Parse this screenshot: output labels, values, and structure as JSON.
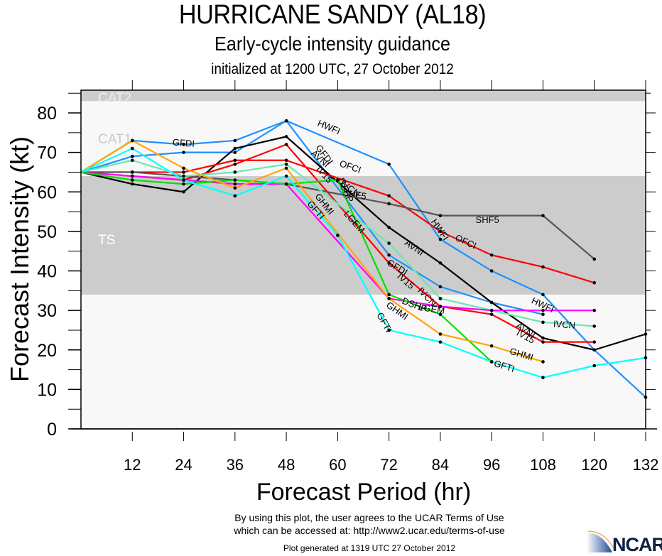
{
  "title": "HURRICANE SANDY (AL18)",
  "subtitle": "Early-cycle intensity guidance",
  "subtitle2": "initialized at 1200 UTC, 27 October 2012",
  "footer": {
    "terms_line1": "By using this plot, the user agrees to the UCAR Terms of Use",
    "terms_line2": "which can be accessed at: http://www2.ucar.edu/terms-of-use",
    "generated": "Plot generated at 1319 UTC   27 October 2012",
    "logo_text": "NCAR"
  },
  "chart_data": {
    "type": "line",
    "title": "HURRICANE SANDY (AL18)",
    "subtitle": "Early-cycle intensity guidance",
    "xlabel": "Forecast Period (hr)",
    "ylabel": "Forecast Intensity (kt)",
    "xlim": [
      0,
      132
    ],
    "ylim": [
      0,
      86
    ],
    "xticks": [
      12,
      24,
      36,
      48,
      60,
      72,
      84,
      96,
      108,
      120,
      132
    ],
    "yticks": [
      0,
      10,
      20,
      30,
      40,
      50,
      60,
      70,
      80
    ],
    "grid": false,
    "legend": "inline labels",
    "bands": [
      {
        "label": "TS",
        "from": 34,
        "to": 64,
        "color": "#cccccc",
        "label_color": "#ffffff"
      },
      {
        "label": "CAT1",
        "from": 64,
        "to": 83,
        "color": "#f8f8f8",
        "label_color": "#c8c8c8"
      },
      {
        "label": "CAT2",
        "from": 83,
        "to": 96,
        "color": "#cccccc",
        "label_color": "#f0f0f0"
      }
    ],
    "series": [
      {
        "name": "HWFI",
        "color": "#1e90ff",
        "x": [
          0,
          12,
          24,
          36,
          48,
          72,
          84,
          96,
          108,
          120,
          132
        ],
        "values": [
          65,
          69,
          70,
          70,
          78,
          67,
          48,
          40,
          34,
          20,
          8
        ],
        "label_at": [
          [
            58,
            76.5
          ],
          [
            84,
            50.5
          ],
          [
            108,
            31.5
          ]
        ]
      },
      {
        "name": "GFDI",
        "color": "#1e90ff",
        "x": [
          0,
          12,
          24,
          36,
          48,
          72,
          84,
          96,
          108
        ],
        "values": [
          65,
          73,
          72,
          73,
          78,
          44,
          36,
          32,
          29
        ],
        "label_at": [
          [
            24,
            72.5
          ],
          [
            57,
            69.5
          ],
          [
            74,
            41
          ]
        ]
      },
      {
        "name": "AVNI",
        "color": "#000000",
        "x": [
          0,
          12,
          24,
          36,
          48,
          72,
          84,
          96,
          108,
          120,
          132
        ],
        "values": [
          65,
          62,
          60,
          71,
          74,
          51,
          42,
          32,
          23,
          20,
          24
        ],
        "label_at": [
          [
            56,
            68.5
          ],
          [
            78,
            46
          ],
          [
            104,
            25
          ]
        ]
      },
      {
        "name": "OFCI",
        "color": "#ff0000",
        "x": [
          0,
          12,
          24,
          36,
          48,
          72,
          84,
          96,
          108,
          120
        ],
        "values": [
          65,
          65,
          65,
          68,
          68,
          59,
          50,
          44,
          41,
          37
        ],
        "label_at": [
          [
            63,
            66.5
          ],
          [
            90,
            47.5
          ]
        ]
      },
      {
        "name": "IV15",
        "color": "#ff0000",
        "x": [
          0,
          12,
          24,
          36,
          48,
          72,
          84,
          96,
          108,
          120
        ],
        "values": [
          65,
          64,
          63,
          67,
          72,
          42,
          31,
          29,
          22,
          22
        ],
        "label_at": [
          [
            57,
            64.5
          ],
          [
            76,
            37.5
          ],
          [
            104,
            23.5
          ]
        ]
      },
      {
        "name": "SHF5",
        "color": "#555555",
        "x": [
          0,
          12,
          24,
          48,
          72,
          84,
          108,
          120
        ],
        "values": [
          65,
          65,
          64,
          62,
          57,
          54,
          54,
          43
        ],
        "label_at": [
          [
            64,
            59.5
          ],
          [
            95,
            53
          ]
        ]
      },
      {
        "name": "IVCN",
        "color": "#66e8b0",
        "x": [
          0,
          12,
          24,
          36,
          48,
          72,
          84,
          96,
          108,
          120
        ],
        "values": [
          65,
          68,
          64,
          65,
          67,
          47,
          33,
          30,
          27,
          26
        ],
        "label_at": [
          [
            63,
            61
          ],
          [
            81,
            33.5
          ],
          [
            113,
            26.5
          ]
        ]
      },
      {
        "name": "LGEM",
        "color": "#ff00ff",
        "x": [
          0,
          12,
          24,
          36,
          48,
          72,
          84,
          96,
          108,
          120
        ],
        "values": [
          65,
          64,
          63,
          62,
          62,
          33,
          31,
          30,
          30,
          30
        ],
        "label_at": [
          [
            64,
            52.5
          ],
          [
            82,
            30.5
          ]
        ]
      },
      {
        "name": "DSHP",
        "color": "#00e000",
        "x": [
          0,
          12,
          24,
          36,
          48,
          60,
          72,
          84,
          96
        ],
        "values": [
          65,
          63,
          62,
          63,
          62,
          63,
          34,
          29,
          17
        ],
        "label_at": [
          [
            62,
            60.5
          ],
          [
            78,
            31.5
          ]
        ]
      },
      {
        "name": "GHMI",
        "color": "#ffa500",
        "x": [
          0,
          12,
          24,
          36,
          48,
          72,
          84,
          96,
          108
        ],
        "values": [
          65,
          73,
          66,
          61,
          66,
          33,
          24,
          21,
          17
        ],
        "label_at": [
          [
            57,
            57
          ],
          [
            74,
            30
          ],
          [
            103,
            19
          ]
        ]
      },
      {
        "name": "GFTI",
        "color": "#00ffff",
        "x": [
          0,
          12,
          24,
          36,
          48,
          60,
          72,
          84,
          96,
          108,
          120,
          132
        ],
        "values": [
          65,
          71,
          63,
          59,
          64,
          49,
          25,
          22,
          17,
          13,
          16,
          18
        ],
        "label_at": [
          [
            55,
            55.5
          ],
          [
            71,
            27
          ],
          [
            99,
            16
          ]
        ]
      }
    ]
  }
}
